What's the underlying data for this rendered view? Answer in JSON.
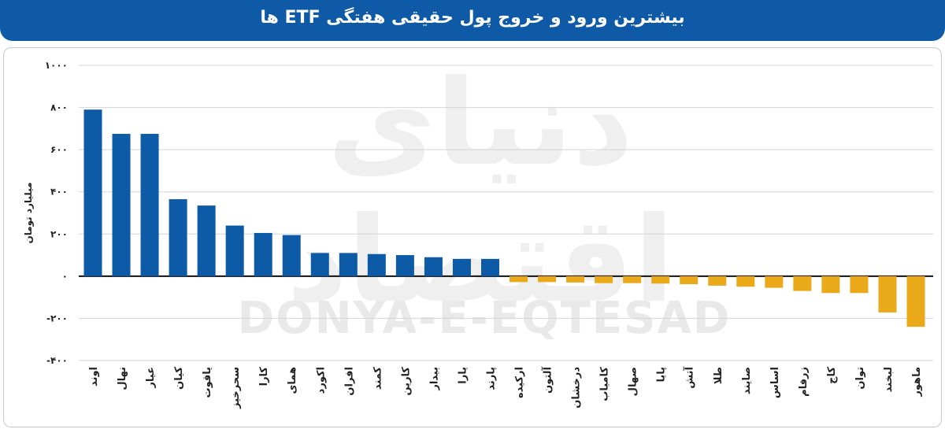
{
  "header": {
    "title": "بیشترین ورود و خروج پول حقیقی هفتگی ETF ها"
  },
  "watermark": {
    "latin": "DONYA-E-EQTESAD",
    "persian": "دنیای اقتصاد"
  },
  "colors": {
    "header_bg": "#0f5aa6",
    "positive": "#0d5aa7",
    "negative": "#e9a919"
  },
  "chart_data": {
    "type": "bar",
    "title": "بیشترین ورود و خروج پول حقیقی هفتگی ETF ها",
    "ylabel": "میلیارد تومان",
    "xlabel": "",
    "ylim": [
      -400,
      1000
    ],
    "yticks": [
      -400,
      -200,
      0,
      200,
      400,
      600,
      800,
      1000
    ],
    "ytick_labels": [
      "-۴۰۰",
      "-۲۰۰",
      "۰",
      "۲۰۰",
      "۴۰۰",
      "۶۰۰",
      "۸۰۰",
      "۱۰۰۰"
    ],
    "grid": true,
    "legend": "none",
    "categories": [
      "اوند",
      "نهال",
      "عیار",
      "کیان",
      "یاقوت",
      "سحرخیز",
      "کارا",
      "همای",
      "اکورد",
      "افران",
      "کمند",
      "کارین",
      "بیدار",
      "یارا",
      "پارند",
      "ارکیده",
      "آلتون",
      "درخشان",
      "کامیاب",
      "صهال",
      "پایا",
      "آتش",
      "طلا",
      "صایند",
      "اساس",
      "زرفام",
      "کاج",
      "توان",
      "لبخند",
      "ماهور"
    ],
    "values": [
      790,
      675,
      675,
      365,
      335,
      240,
      205,
      195,
      110,
      110,
      105,
      100,
      90,
      82,
      82,
      -28,
      -28,
      -30,
      -33,
      -33,
      -35,
      -38,
      -45,
      -50,
      -55,
      -70,
      -80,
      -80,
      -172,
      -240
    ]
  }
}
